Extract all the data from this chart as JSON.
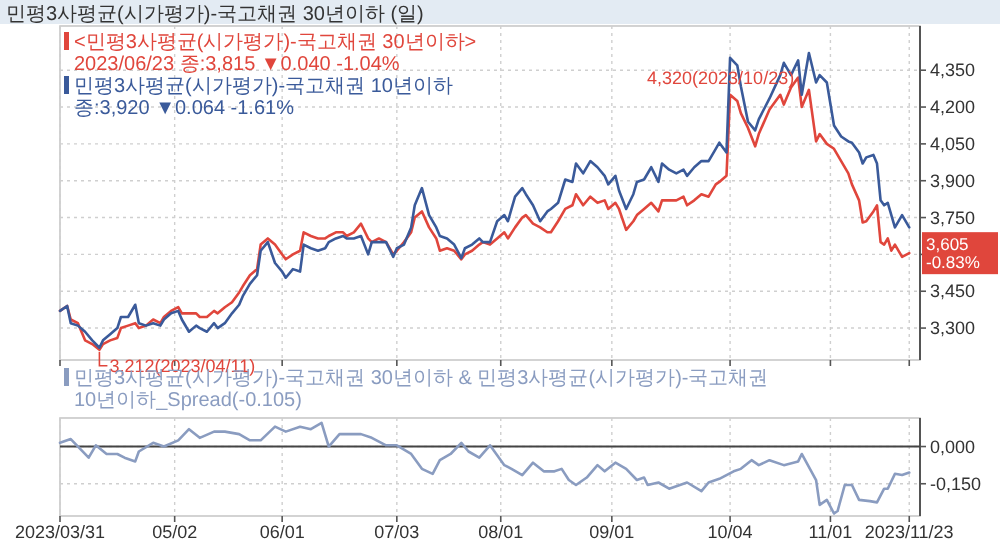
{
  "chart_data": [
    {
      "type": "line",
      "title": "민평3사평균(시가평가)-국고채권 30년이하 (일)",
      "x": [
        "2023-03-31",
        "2023-04-02",
        "2023-04-03",
        "2023-04-05",
        "2023-04-07",
        "2023-04-09",
        "2023-04-11",
        "2023-04-12",
        "2023-04-14",
        "2023-04-16",
        "2023-04-17",
        "2023-04-19",
        "2023-04-21",
        "2023-04-22",
        "2023-04-24",
        "2023-04-26",
        "2023-04-28",
        "2023-04-29",
        "2023-05-01",
        "2023-05-03",
        "2023-05-04",
        "2023-05-06",
        "2023-05-08",
        "2023-05-09",
        "2023-05-11",
        "2023-05-13",
        "2023-05-14",
        "2023-05-16",
        "2023-05-18",
        "2023-05-20",
        "2023-05-21",
        "2023-05-23",
        "2023-05-25",
        "2023-05-26",
        "2023-05-28",
        "2023-05-30",
        "2023-06-01",
        "2023-06-02",
        "2023-06-04",
        "2023-06-06",
        "2023-06-07",
        "2023-06-09",
        "2023-06-11",
        "2023-06-13",
        "2023-06-14",
        "2023-06-16",
        "2023-06-18",
        "2023-06-19",
        "2023-06-21",
        "2023-06-23",
        "2023-06-25",
        "2023-06-26",
        "2023-06-28",
        "2023-06-30",
        "2023-07-02",
        "2023-07-03",
        "2023-07-05",
        "2023-07-07",
        "2023-07-08",
        "2023-07-10",
        "2023-07-12",
        "2023-07-14",
        "2023-07-15",
        "2023-07-17",
        "2023-07-19",
        "2023-07-21",
        "2023-07-22",
        "2023-07-24",
        "2023-07-26",
        "2023-07-27",
        "2023-07-29",
        "2023-07-31",
        "2023-08-02",
        "2023-08-03",
        "2023-08-05",
        "2023-08-07",
        "2023-08-08",
        "2023-08-10",
        "2023-08-12",
        "2023-08-14",
        "2023-08-15",
        "2023-08-17",
        "2023-08-19",
        "2023-08-21",
        "2023-08-22",
        "2023-08-24",
        "2023-08-26",
        "2023-08-28",
        "2023-08-30",
        "2023-08-31",
        "2023-09-02",
        "2023-09-03",
        "2023-09-05",
        "2023-09-07",
        "2023-09-08",
        "2023-09-10",
        "2023-09-12",
        "2023-09-14",
        "2023-09-15",
        "2023-09-17",
        "2023-09-19",
        "2023-09-21",
        "2023-09-22",
        "2023-09-24",
        "2023-09-26",
        "2023-09-28",
        "2023-09-30",
        "2023-10-01",
        "2023-10-03",
        "2023-10-04",
        "2023-10-06",
        "2023-10-07",
        "2023-10-09",
        "2023-10-11",
        "2023-10-12",
        "2023-10-15",
        "2023-10-18",
        "2023-10-19",
        "2023-10-21",
        "2023-10-23",
        "2023-10-24",
        "2023-10-26",
        "2023-10-28",
        "2023-10-29",
        "2023-10-31",
        "2023-11-02",
        "2023-11-04",
        "2023-11-06",
        "2023-11-07",
        "2023-11-09",
        "2023-11-10",
        "2023-11-11",
        "2023-11-13",
        "2023-11-14",
        "2023-11-15",
        "2023-11-16",
        "2023-11-17",
        "2023-11-18",
        "2023-11-19",
        "2023-11-21",
        "2023-11-23"
      ],
      "series": [
        {
          "name": "<민평3사평균(시가평가)-국고채권 30년이하> 2023/06/23 종:3,815 ▼0.040 -1.04%",
          "color": "#e0463c",
          "values": [
            3370,
            3390,
            3335,
            3320,
            3250,
            3235,
            3212,
            3235,
            3250,
            3260,
            3300,
            3310,
            3320,
            3300,
            3310,
            3335,
            3320,
            3345,
            3370,
            3385,
            3360,
            3360,
            3360,
            3345,
            3345,
            3370,
            3360,
            3385,
            3405,
            3445,
            3470,
            3515,
            3540,
            3640,
            3665,
            3640,
            3600,
            3580,
            3600,
            3615,
            3690,
            3675,
            3665,
            3665,
            3675,
            3690,
            3690,
            3675,
            3690,
            3725,
            3665,
            3650,
            3665,
            3650,
            3600,
            3615,
            3650,
            3690,
            3750,
            3775,
            3710,
            3665,
            3615,
            3625,
            3615,
            3580,
            3600,
            3615,
            3640,
            3650,
            3640,
            3665,
            3690,
            3665,
            3710,
            3750,
            3760,
            3725,
            3710,
            3690,
            3690,
            3735,
            3785,
            3800,
            3845,
            3800,
            3835,
            3810,
            3820,
            3785,
            3810,
            3785,
            3700,
            3735,
            3760,
            3785,
            3810,
            3775,
            3820,
            3820,
            3820,
            3835,
            3800,
            3820,
            3845,
            3835,
            3885,
            3895,
            3920,
            4250,
            4225,
            4175,
            4115,
            4040,
            4090,
            4190,
            4250,
            4210,
            4280,
            4320,
            4200,
            4270,
            4060,
            4090,
            4050,
            4030,
            3980,
            3930,
            3885,
            3820,
            3730,
            3735,
            3775,
            3800,
            3650,
            3640,
            3665,
            3615,
            3640,
            3590,
            3605
          ]
        },
        {
          "name": "민평3사평균(시가평가)-국고채권 10년이하 종:3,920 ▼0.064 -1.61%",
          "color": "#3a5a9a",
          "values": [
            3370,
            3390,
            3320,
            3310,
            3285,
            3250,
            3220,
            3250,
            3275,
            3300,
            3345,
            3345,
            3395,
            3320,
            3310,
            3320,
            3310,
            3335,
            3360,
            3370,
            3335,
            3285,
            3310,
            3300,
            3285,
            3320,
            3300,
            3320,
            3360,
            3395,
            3430,
            3480,
            3515,
            3615,
            3650,
            3565,
            3530,
            3505,
            3540,
            3530,
            3640,
            3625,
            3615,
            3625,
            3650,
            3665,
            3675,
            3665,
            3665,
            3675,
            3600,
            3650,
            3650,
            3650,
            3590,
            3625,
            3640,
            3710,
            3800,
            3870,
            3760,
            3710,
            3675,
            3665,
            3640,
            3585,
            3625,
            3640,
            3665,
            3650,
            3650,
            3735,
            3760,
            3735,
            3835,
            3870,
            3845,
            3800,
            3735,
            3775,
            3785,
            3810,
            3905,
            3895,
            3970,
            3930,
            3980,
            3955,
            3920,
            3885,
            3920,
            3860,
            3785,
            3845,
            3895,
            3905,
            3955,
            3895,
            3970,
            3945,
            3930,
            3945,
            3920,
            3955,
            3980,
            3980,
            4030,
            4055,
            4015,
            4400,
            4370,
            4285,
            4140,
            4105,
            4150,
            4235,
            4330,
            4380,
            4330,
            4390,
            4250,
            4420,
            4300,
            4330,
            4300,
            4125,
            4080,
            4060,
            4055,
            4015,
            3970,
            3995,
            4005,
            3970,
            3820,
            3800,
            3810,
            3760,
            3710,
            3760,
            3710
          ]
        }
      ],
      "xlim": [
        "2023-03-31",
        "2023-11-26"
      ],
      "xticks": [
        {
          "value": "2023-03-31",
          "label": null
        },
        {
          "value": "2023-05-02",
          "label": null
        },
        {
          "value": "2023-06-01",
          "label": null
        },
        {
          "value": "2023-07-03",
          "label": null
        },
        {
          "value": "2023-08-01",
          "label": null
        },
        {
          "value": "2023-09-01",
          "label": null
        },
        {
          "value": "2023-10-04",
          "label": null
        },
        {
          "value": "2023-11-01",
          "label": null
        },
        {
          "value": "2023-11-23",
          "label": null
        }
      ],
      "ylim": [
        3170,
        4530
      ],
      "yticks": [
        {
          "value": 3300,
          "label": "3,300"
        },
        {
          "value": 3450,
          "label": "3,450"
        },
        {
          "value": 3600,
          "label": null
        },
        {
          "value": 3750,
          "label": "3,750"
        },
        {
          "value": 3900,
          "label": "3,900"
        },
        {
          "value": 4050,
          "label": "4,050"
        },
        {
          "value": 4200,
          "label": "4,200"
        },
        {
          "value": 4350,
          "label": "4,350"
        }
      ],
      "grid": true,
      "legend": "top left",
      "tick_labels": "y",
      "annotations": [
        {
          "text": "4,320(2023/10/23)",
          "x": "2023-10-23",
          "y": 4320
        },
        {
          "text": "3,212(2023/04/11)",
          "x": "2023-04-11",
          "y": 3212
        },
        {
          "text": "3,605 -0.83%",
          "x": "2023-11-23",
          "y": 3605
        }
      ]
    },
    {
      "type": "line",
      "x": [
        "2023-03-31",
        "2023-04-03",
        "2023-04-08",
        "2023-04-10",
        "2023-04-13",
        "2023-04-16",
        "2023-04-18",
        "2023-04-21",
        "2023-04-22",
        "2023-04-26",
        "2023-04-29",
        "2023-05-03",
        "2023-05-06",
        "2023-05-09",
        "2023-05-13",
        "2023-05-16",
        "2023-05-20",
        "2023-05-23",
        "2023-05-26",
        "2023-05-30",
        "2023-06-02",
        "2023-06-06",
        "2023-06-09",
        "2023-06-12",
        "2023-06-14",
        "2023-06-17",
        "2023-06-19",
        "2023-06-23",
        "2023-06-26",
        "2023-06-30",
        "2023-07-03",
        "2023-07-07",
        "2023-07-10",
        "2023-07-13",
        "2023-07-15",
        "2023-07-18",
        "2023-07-21",
        "2023-07-23",
        "2023-07-26",
        "2023-07-29",
        "2023-08-02",
        "2023-08-04",
        "2023-08-07",
        "2023-08-10",
        "2023-08-13",
        "2023-08-16",
        "2023-08-18",
        "2023-08-20",
        "2023-08-22",
        "2023-08-25",
        "2023-08-28",
        "2023-08-30",
        "2023-09-02",
        "2023-09-05",
        "2023-09-08",
        "2023-09-10",
        "2023-09-11",
        "2023-09-14",
        "2023-09-17",
        "2023-09-20",
        "2023-09-22",
        "2023-09-26",
        "2023-09-28",
        "2023-10-01",
        "2023-10-05",
        "2023-10-07",
        "2023-10-10",
        "2023-10-12",
        "2023-10-15",
        "2023-10-19",
        "2023-10-23",
        "2023-10-24",
        "2023-10-28",
        "2023-10-29",
        "2023-10-31",
        "2023-11-02",
        "2023-11-03",
        "2023-11-05",
        "2023-11-07",
        "2023-11-09",
        "2023-11-12",
        "2023-11-14",
        "2023-11-16",
        "2023-11-17",
        "2023-11-19",
        "2023-11-21",
        "2023-11-23"
      ],
      "series": [
        {
          "name": "민평3사평균(시가평가)-국고채권 30년이하 & 민평3사평균(시가평가)-국고채권 10년이하_Spread(-0.105)",
          "color": "#8a9cc0",
          "values": [
            0.015,
            0.03,
            -0.045,
            0.005,
            -0.03,
            -0.03,
            -0.045,
            -0.06,
            -0.02,
            0.015,
            0,
            0.025,
            0.07,
            0.035,
            0.06,
            0.06,
            0.05,
            0.025,
            0.025,
            0.08,
            0.06,
            0.08,
            0.07,
            0.095,
            0,
            0.05,
            0.05,
            0.05,
            0.035,
            0.005,
            0.005,
            -0.03,
            -0.09,
            -0.11,
            -0.055,
            -0.03,
            0.015,
            -0.02,
            -0.045,
            0.005,
            -0.075,
            -0.09,
            -0.115,
            -0.065,
            -0.1,
            -0.1,
            -0.09,
            -0.135,
            -0.155,
            -0.125,
            -0.075,
            -0.1,
            -0.065,
            -0.09,
            -0.135,
            -0.125,
            -0.155,
            -0.145,
            -0.17,
            -0.155,
            -0.145,
            -0.18,
            -0.145,
            -0.13,
            -0.1,
            -0.09,
            -0.055,
            -0.075,
            -0.055,
            -0.075,
            -0.06,
            -0.03,
            -0.135,
            -0.235,
            -0.215,
            -0.27,
            -0.26,
            -0.155,
            -0.155,
            -0.215,
            -0.22,
            -0.225,
            -0.17,
            -0.17,
            -0.11,
            -0.115,
            -0.105
          ]
        }
      ],
      "xlim": [
        "2023-03-31",
        "2023-11-26"
      ],
      "xticks": [
        {
          "value": "2023-03-31",
          "label": "2023/03/31"
        },
        {
          "value": "2023-05-02",
          "label": "05/02"
        },
        {
          "value": "2023-06-01",
          "label": "06/01"
        },
        {
          "value": "2023-07-03",
          "label": "07/03"
        },
        {
          "value": "2023-08-01",
          "label": "08/01"
        },
        {
          "value": "2023-09-01",
          "label": "09/01"
        },
        {
          "value": "2023-10-04",
          "label": "10/04"
        },
        {
          "value": "2023-11-01",
          "label": "11/01"
        },
        {
          "value": "2023-11-23",
          "label": "2023/11/23"
        }
      ],
      "ylim": [
        -0.28,
        0.115
      ],
      "yticks": [
        {
          "value": 0,
          "label": "0,000"
        },
        {
          "value": -0.15,
          "label": "-0,150"
        }
      ],
      "ref_lines": [
        {
          "axis": "y",
          "value": 0,
          "color": "#444444"
        }
      ],
      "grid": true,
      "legend": "top left"
    }
  ]
}
